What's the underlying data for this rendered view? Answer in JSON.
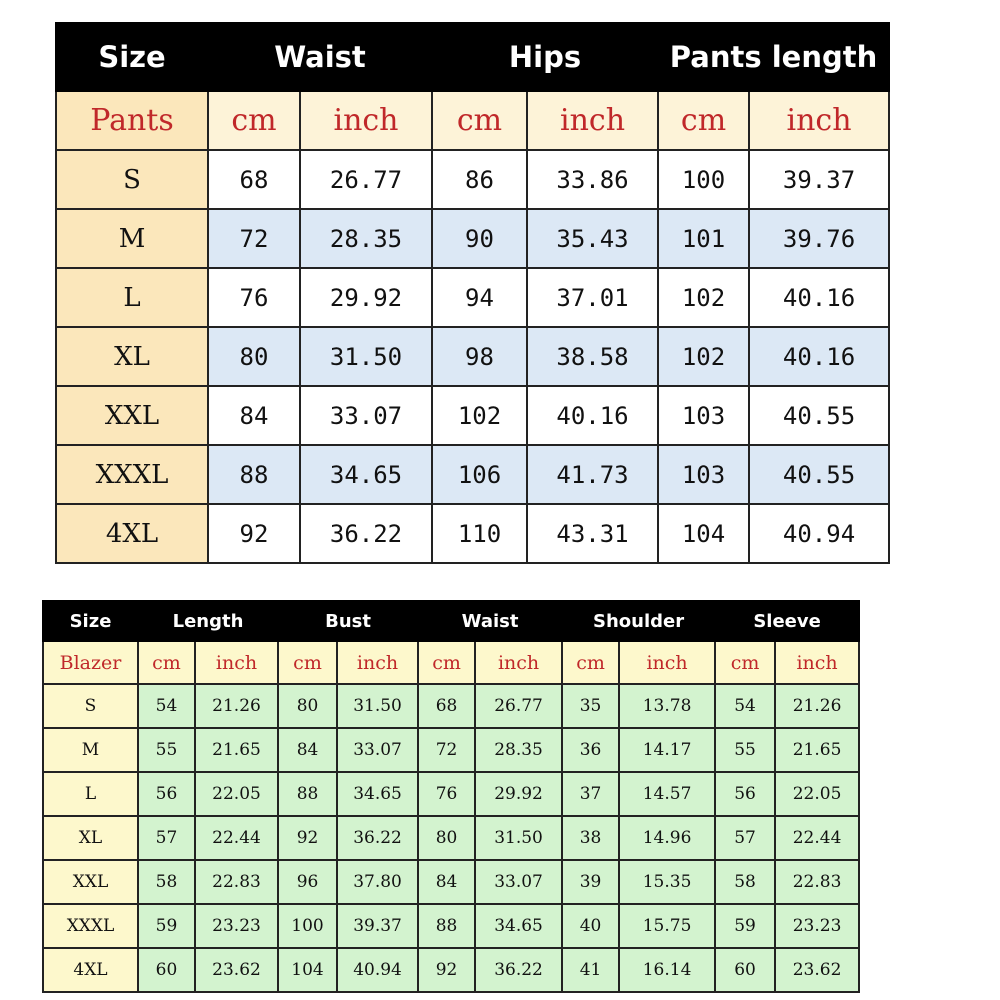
{
  "pants": {
    "headers": [
      "Size",
      "Waist",
      "Hips",
      "Pants length"
    ],
    "subheaders": [
      "Pants",
      "cm",
      "inch",
      "cm",
      "inch",
      "cm",
      "inch"
    ],
    "rows": [
      [
        "S",
        "68",
        "26.77",
        "86",
        "33.86",
        "100",
        "39.37"
      ],
      [
        "M",
        "72",
        "28.35",
        "90",
        "35.43",
        "101",
        "39.76"
      ],
      [
        "L",
        "76",
        "29.92",
        "94",
        "37.01",
        "102",
        "40.16"
      ],
      [
        "XL",
        "80",
        "31.50",
        "98",
        "38.58",
        "102",
        "40.16"
      ],
      [
        "XXL",
        "84",
        "33.07",
        "102",
        "40.16",
        "103",
        "40.55"
      ],
      [
        "XXXL",
        "88",
        "34.65",
        "106",
        "41.73",
        "103",
        "40.55"
      ],
      [
        "4XL",
        "92",
        "36.22",
        "110",
        "43.31",
        "104",
        "40.94"
      ]
    ],
    "colors": {
      "header": "#000000",
      "size_col": "#fbe7bb",
      "alt_row": "#dce8f5",
      "unit_text": "#c0282a"
    }
  },
  "blazer": {
    "headers": [
      "Size",
      "Length",
      "Bust",
      "Waist",
      "Shoulder",
      "Sleeve"
    ],
    "subheaders": [
      "Blazer",
      "cm",
      "inch",
      "cm",
      "inch",
      "cm",
      "inch",
      "cm",
      "inch",
      "cm",
      "inch"
    ],
    "rows": [
      [
        "S",
        "54",
        "21.26",
        "80",
        "31.50",
        "68",
        "26.77",
        "35",
        "13.78",
        "54",
        "21.26"
      ],
      [
        "M",
        "55",
        "21.65",
        "84",
        "33.07",
        "72",
        "28.35",
        "36",
        "14.17",
        "55",
        "21.65"
      ],
      [
        "L",
        "56",
        "22.05",
        "88",
        "34.65",
        "76",
        "29.92",
        "37",
        "14.57",
        "56",
        "22.05"
      ],
      [
        "XL",
        "57",
        "22.44",
        "92",
        "36.22",
        "80",
        "31.50",
        "38",
        "14.96",
        "57",
        "22.44"
      ],
      [
        "XXL",
        "58",
        "22.83",
        "96",
        "37.80",
        "84",
        "33.07",
        "39",
        "15.35",
        "58",
        "22.83"
      ],
      [
        "XXXL",
        "59",
        "23.23",
        "100",
        "39.37",
        "88",
        "34.65",
        "40",
        "15.75",
        "59",
        "23.23"
      ],
      [
        "4XL",
        "60",
        "23.62",
        "104",
        "40.94",
        "92",
        "36.22",
        "41",
        "16.14",
        "60",
        "23.62"
      ]
    ],
    "colors": {
      "header": "#000000",
      "size_col": "#fdf8cc",
      "cell": "#d3f3cf",
      "unit_text": "#c0282a"
    }
  }
}
